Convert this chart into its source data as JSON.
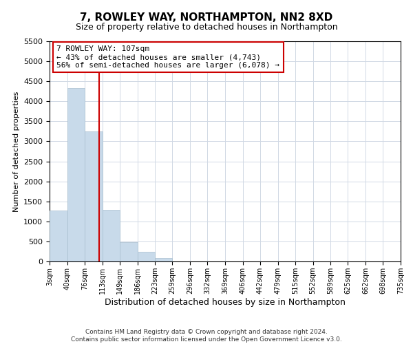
{
  "title": "7, ROWLEY WAY, NORTHAMPTON, NN2 8XD",
  "subtitle": "Size of property relative to detached houses in Northampton",
  "xlabel": "Distribution of detached houses by size in Northampton",
  "ylabel": "Number of detached properties",
  "bin_edges": [
    3,
    40,
    76,
    113,
    149,
    186,
    223,
    259,
    296,
    332,
    369,
    406,
    442,
    479,
    515,
    552,
    589,
    625,
    662,
    698,
    735
  ],
  "bar_heights": [
    1270,
    4330,
    3250,
    1290,
    480,
    235,
    85,
    0,
    0,
    0,
    0,
    0,
    0,
    0,
    0,
    0,
    0,
    0,
    0,
    0
  ],
  "bar_color": "#c8daea",
  "bar_edge_color": "#a8bece",
  "property_line_x": 107,
  "property_line_color": "#cc0000",
  "annotation_line1": "7 ROWLEY WAY: 107sqm",
  "annotation_line2": "← 43% of detached houses are smaller (4,743)",
  "annotation_line3": "56% of semi-detached houses are larger (6,078) →",
  "annotation_box_color": "#ffffff",
  "annotation_box_edge": "#cc0000",
  "ylim": [
    0,
    5500
  ],
  "yticks": [
    0,
    500,
    1000,
    1500,
    2000,
    2500,
    3000,
    3500,
    4000,
    4500,
    5000,
    5500
  ],
  "tick_labels": [
    "3sqm",
    "40sqm",
    "76sqm",
    "113sqm",
    "149sqm",
    "186sqm",
    "223sqm",
    "259sqm",
    "296sqm",
    "332sqm",
    "369sqm",
    "406sqm",
    "442sqm",
    "479sqm",
    "515sqm",
    "552sqm",
    "589sqm",
    "625sqm",
    "662sqm",
    "698sqm",
    "735sqm"
  ],
  "footer_line1": "Contains HM Land Registry data © Crown copyright and database right 2024.",
  "footer_line2": "Contains public sector information licensed under the Open Government Licence v3.0.",
  "background_color": "#ffffff",
  "grid_color": "#d0d8e4",
  "title_fontsize": 11,
  "subtitle_fontsize": 9,
  "xlabel_fontsize": 9,
  "ylabel_fontsize": 8,
  "ytick_fontsize": 8,
  "xtick_fontsize": 7,
  "footer_fontsize": 6.5,
  "annot_fontsize": 8
}
